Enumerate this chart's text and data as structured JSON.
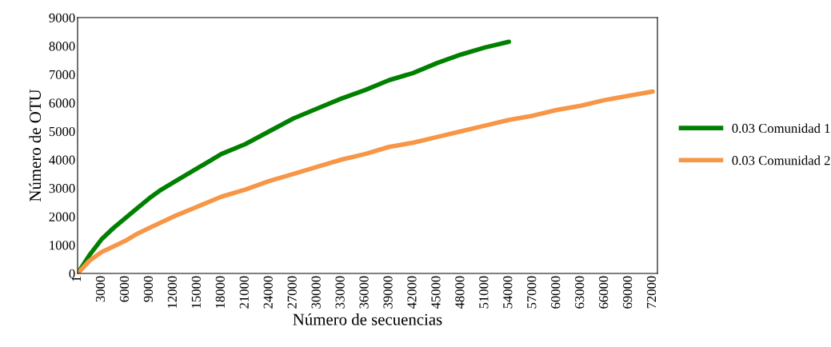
{
  "chart_data": {
    "type": "line",
    "xlabel": "Número de secuencias",
    "ylabel": "Número de OTU",
    "x": [
      1,
      1500,
      3000,
      4500,
      6000,
      7500,
      9000,
      10500,
      12000,
      15000,
      18000,
      21000,
      24000,
      27000,
      30000,
      33000,
      36000,
      39000,
      42000,
      45000,
      48000,
      51000,
      54000,
      57000,
      60000,
      63000,
      66000,
      69000,
      72000
    ],
    "series": [
      {
        "name": "0.03 Comunidad 1",
        "color": "#008000",
        "x": [
          1,
          1500,
          3000,
          4500,
          6000,
          7500,
          9000,
          10500,
          12000,
          15000,
          18000,
          21000,
          24000,
          27000,
          30000,
          33000,
          36000,
          39000,
          42000,
          45000,
          48000,
          51000,
          54000
        ],
        "values": [
          0,
          650,
          1200,
          1600,
          1950,
          2300,
          2650,
          2950,
          3200,
          3700,
          4200,
          4550,
          5000,
          5450,
          5800,
          6150,
          6450,
          6800,
          7050,
          7400,
          7700,
          7950,
          8150
        ]
      },
      {
        "name": "0.03 Comunidad 2",
        "color": "#f79646",
        "values": [
          0,
          450,
          750,
          950,
          1150,
          1400,
          1600,
          1800,
          2000,
          2350,
          2700,
          2950,
          3250,
          3500,
          3750,
          4000,
          4200,
          4450,
          4600,
          4800,
          5000,
          5200,
          5400,
          5550,
          5750,
          5900,
          6100,
          6250,
          6400
        ]
      }
    ],
    "xlim": [
      0,
      72600
    ],
    "xticks": [
      1,
      3000,
      6000,
      9000,
      12000,
      15000,
      18000,
      21000,
      24000,
      27000,
      30000,
      33000,
      36000,
      39000,
      42000,
      45000,
      48000,
      51000,
      54000,
      57000,
      60000,
      63000,
      66000,
      69000,
      72000
    ],
    "ylim": [
      0,
      9000
    ],
    "yticks": [
      0,
      1000,
      2000,
      3000,
      4000,
      5000,
      6000,
      7000,
      8000,
      9000
    ],
    "grid": false,
    "legend": "right",
    "marker": "none",
    "line_style": "solid"
  }
}
